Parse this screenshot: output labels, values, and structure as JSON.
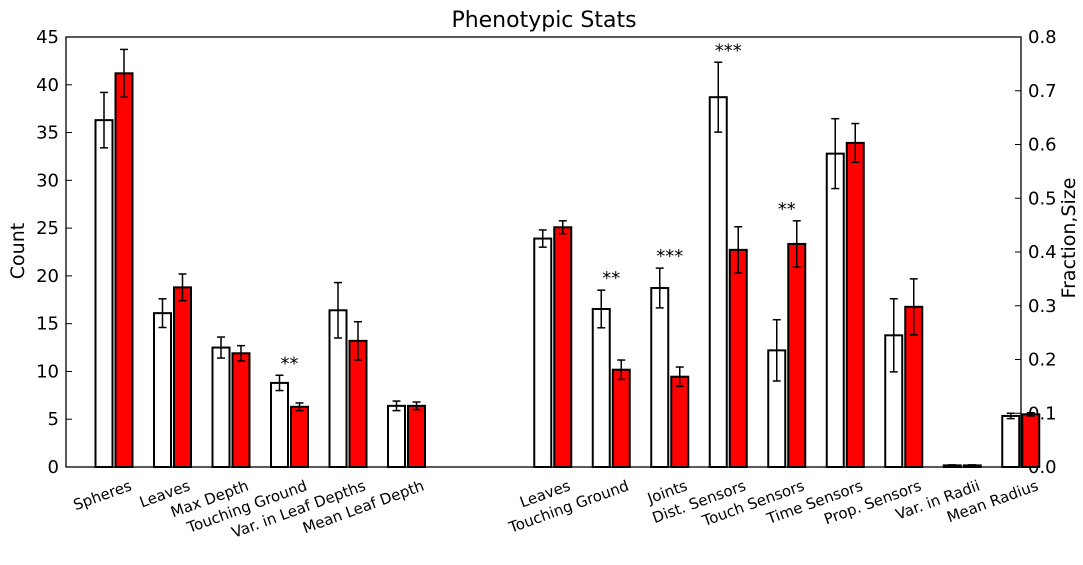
{
  "chart_data": {
    "type": "bar",
    "title": "Phenotypic Stats",
    "ylabel_left": "Count",
    "ylabel_right": "Fraction,Size",
    "ylim_left": [
      0,
      45
    ],
    "ylim_right": [
      0,
      0.8
    ],
    "yticks_left": [
      "0",
      "5",
      "10",
      "15",
      "20",
      "25",
      "30",
      "35",
      "40",
      "45"
    ],
    "yticks_right": [
      "0.0",
      "0.1",
      "0.2",
      "0.3",
      "0.4",
      "0.5",
      "0.6",
      "0.7",
      "0.8"
    ],
    "grid": false,
    "bar_colors": {
      "series1": "#ffffff",
      "series2": "#ff0000"
    },
    "groups": [
      {
        "label": "Spheres",
        "axis": "left",
        "values": [
          36.3,
          41.2
        ],
        "errors": [
          2.9,
          2.5
        ],
        "significance": ""
      },
      {
        "label": "Leaves",
        "axis": "left",
        "values": [
          16.1,
          18.8
        ],
        "errors": [
          1.5,
          1.4
        ],
        "significance": ""
      },
      {
        "label": "Max Depth",
        "axis": "left",
        "values": [
          12.5,
          11.9
        ],
        "errors": [
          1.1,
          0.8
        ],
        "significance": ""
      },
      {
        "label": "Touching Ground",
        "axis": "left",
        "values": [
          8.8,
          6.3
        ],
        "errors": [
          0.8,
          0.4
        ],
        "significance": "**"
      },
      {
        "label": "Var. in Leaf Depths",
        "axis": "left",
        "values": [
          16.4,
          13.2
        ],
        "errors": [
          2.9,
          2.0
        ],
        "significance": ""
      },
      {
        "label": "Mean Leaf Depth",
        "axis": "left",
        "values": [
          6.4,
          6.4
        ],
        "errors": [
          0.5,
          0.4
        ],
        "significance": ""
      },
      {
        "label": "Leaves",
        "axis": "right",
        "values": [
          0.425,
          0.446
        ],
        "errors": [
          0.016,
          0.012
        ],
        "significance": ""
      },
      {
        "label": "Touching Ground",
        "axis": "right",
        "values": [
          0.294,
          0.181
        ],
        "errors": [
          0.035,
          0.018
        ],
        "significance": "**"
      },
      {
        "label": "Joints",
        "axis": "right",
        "values": [
          0.333,
          0.168
        ],
        "errors": [
          0.037,
          0.018
        ],
        "significance": "***"
      },
      {
        "label": "Dist. Sensors",
        "axis": "right",
        "values": [
          0.688,
          0.404
        ],
        "errors": [
          0.065,
          0.043
        ],
        "significance": "***"
      },
      {
        "label": "Touch Sensors",
        "axis": "right",
        "values": [
          0.217,
          0.415
        ],
        "errors": [
          0.057,
          0.043
        ],
        "significance": "**"
      },
      {
        "label": "Time Sensors",
        "axis": "right",
        "values": [
          0.583,
          0.603
        ],
        "errors": [
          0.065,
          0.036
        ],
        "significance": ""
      },
      {
        "label": "Prop. Sensors",
        "axis": "right",
        "values": [
          0.245,
          0.298
        ],
        "errors": [
          0.068,
          0.052
        ],
        "significance": ""
      },
      {
        "label": "Var. in Radii",
        "axis": "right",
        "values": [
          0.003,
          0.003
        ],
        "errors": [
          0.001,
          0.001
        ],
        "significance": ""
      },
      {
        "label": "Mean Radius",
        "axis": "right",
        "values": [
          0.095,
          0.098
        ],
        "errors": [
          0.005,
          0.003
        ],
        "significance": ""
      }
    ]
  }
}
